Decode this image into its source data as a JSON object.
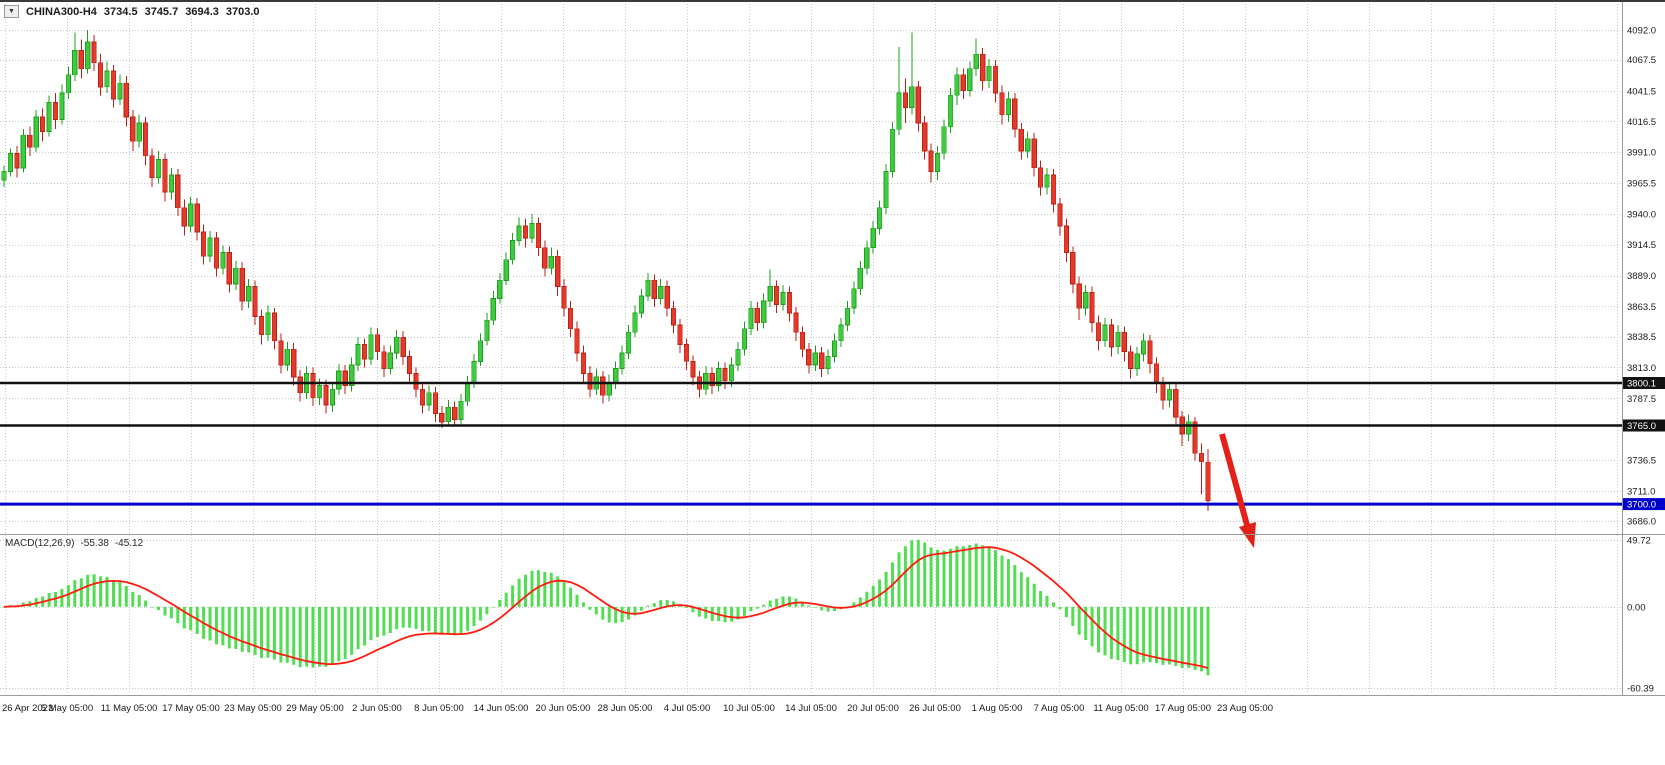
{
  "colors": {
    "background": "#ffffff",
    "grid": "#c9c9c9",
    "candle_up": "#3fca3f",
    "candle_down": "#e43a2c",
    "wick_up": "#1d9e1d",
    "wick_down": "#bb2015",
    "macd_histogram": "#52dd52",
    "signal_line": "#ff1c0f",
    "hline_dark": "#111111",
    "hline_blue": "#0000cc",
    "arrow": "#e32119",
    "axis_text": "#1a1a1a"
  },
  "header": {
    "dropdown_icon": "▼",
    "symbol_period": "CHINA300-H4",
    "open": "3734.5",
    "high": "3745.7",
    "low": "3694.3",
    "close": "3703.0"
  },
  "indicator_label": {
    "name": "MACD(12,26,9)",
    "macd": "-55.38",
    "signal": "-45.12"
  },
  "macd_axis": {
    "labels": [
      "49.72",
      "0.00",
      "-60.39"
    ]
  },
  "chart_data": {
    "type": "candlestick",
    "symbol": "CHINA300",
    "timeframe": "H4",
    "title": "CHINA300-H4",
    "last_quote": {
      "open": 3734.5,
      "high": 3745.7,
      "low": 3694.3,
      "close": 3703.0
    },
    "ylim": [
      3686.0,
      4092.0
    ],
    "grid": "dashed",
    "price_axis_ticks": [
      "4092.0",
      "4067.5",
      "4041.5",
      "4016.5",
      "3991.0",
      "3965.5",
      "3940.0",
      "3914.5",
      "3889.0",
      "3863.5",
      "3838.5",
      "3813.0",
      "3787.5",
      "3736.5",
      "3711.0",
      "3686.0"
    ],
    "time_labels": [
      "26 Apr 2023",
      "5 May 05:00",
      "11 May 05:00",
      "17 May 05:00",
      "23 May 05:00",
      "29 May 05:00",
      "2 Jun 05:00",
      "8 Jun 05:00",
      "14 Jun 05:00",
      "20 Jun 05:00",
      "28 Jun 05:00",
      "4 Jul 05:00",
      "10 Jul 05:00",
      "14 Jul 05:00",
      "20 Jul 05:00",
      "26 Jul 05:00",
      "1 Aug 05:00",
      "7 Aug 05:00",
      "11 Aug 05:00",
      "17 Aug 05:00",
      "23 Aug 05:00"
    ],
    "horizontal_lines": [
      {
        "price": 3800.1,
        "label": "3800.1",
        "color": "#111111"
      },
      {
        "price": 3765.0,
        "label": "3765.0",
        "color": "#111111"
      },
      {
        "price": 3700.0,
        "label": "3700.0",
        "color": "#0000cc"
      }
    ],
    "annotation_arrow": {
      "shape": "arrow-down-right",
      "color": "#e32119",
      "meaning": "breakdown below support toward 3700"
    },
    "indicator": {
      "type": "MACD",
      "fast": 12,
      "slow": 26,
      "signal": 9,
      "last_macd": -55.38,
      "last_signal": -45.12,
      "ylim": [
        -60.39,
        49.72
      ],
      "zero_label": "0.00"
    },
    "ohlc": [
      [
        3968,
        3980,
        3962,
        3975
      ],
      [
        3975,
        3994,
        3971,
        3990
      ],
      [
        3990,
        3996,
        3970,
        3978
      ],
      [
        3978,
        4010,
        3974,
        4005
      ],
      [
        4005,
        4012,
        3988,
        3995
      ],
      [
        3995,
        4026,
        3991,
        4020
      ],
      [
        4020,
        4027,
        4000,
        4008
      ],
      [
        4008,
        4038,
        4004,
        4032
      ],
      [
        4032,
        4040,
        4010,
        4018
      ],
      [
        4018,
        4047,
        4014,
        4040
      ],
      [
        4040,
        4062,
        4035,
        4055
      ],
      [
        4055,
        4090,
        4050,
        4075
      ],
      [
        4075,
        4084,
        4052,
        4060
      ],
      [
        4060,
        4092,
        4056,
        4082
      ],
      [
        4082,
        4088,
        4058,
        4065
      ],
      [
        4065,
        4072,
        4038,
        4045
      ],
      [
        4045,
        4066,
        4040,
        4058
      ],
      [
        4058,
        4063,
        4028,
        4035
      ],
      [
        4035,
        4055,
        4030,
        4048
      ],
      [
        4048,
        4054,
        4012,
        4020
      ],
      [
        4020,
        4026,
        3992,
        4000
      ],
      [
        4000,
        4022,
        3995,
        4015
      ],
      [
        4015,
        4020,
        3980,
        3988
      ],
      [
        3988,
        3994,
        3962,
        3970
      ],
      [
        3970,
        3992,
        3965,
        3985
      ],
      [
        3985,
        3990,
        3950,
        3958
      ],
      [
        3958,
        3978,
        3952,
        3972
      ],
      [
        3972,
        3977,
        3938,
        3945
      ],
      [
        3945,
        3952,
        3922,
        3930
      ],
      [
        3930,
        3954,
        3925,
        3948
      ],
      [
        3948,
        3953,
        3918,
        3925
      ],
      [
        3925,
        3931,
        3898,
        3905
      ],
      [
        3905,
        3926,
        3900,
        3920
      ],
      [
        3920,
        3925,
        3888,
        3895
      ],
      [
        3895,
        3914,
        3890,
        3908
      ],
      [
        3908,
        3913,
        3875,
        3882
      ],
      [
        3882,
        3901,
        3877,
        3895
      ],
      [
        3895,
        3900,
        3860,
        3868
      ],
      [
        3868,
        3886,
        3862,
        3880
      ],
      [
        3880,
        3885,
        3848,
        3855
      ],
      [
        3855,
        3861,
        3832,
        3840
      ],
      [
        3840,
        3864,
        3835,
        3858
      ],
      [
        3858,
        3862,
        3828,
        3835
      ],
      [
        3835,
        3841,
        3808,
        3815
      ],
      [
        3815,
        3834,
        3810,
        3828
      ],
      [
        3828,
        3833,
        3798,
        3805
      ],
      [
        3805,
        3811,
        3785,
        3792
      ],
      [
        3792,
        3814,
        3787,
        3808
      ],
      [
        3808,
        3813,
        3781,
        3788
      ],
      [
        3788,
        3804,
        3782,
        3798
      ],
      [
        3798,
        3803,
        3775,
        3782
      ],
      [
        3782,
        3801,
        3776,
        3795
      ],
      [
        3795,
        3816,
        3790,
        3810
      ],
      [
        3810,
        3815,
        3791,
        3798
      ],
      [
        3798,
        3821,
        3793,
        3815
      ],
      [
        3815,
        3838,
        3810,
        3832
      ],
      [
        3832,
        3837,
        3813,
        3820
      ],
      [
        3820,
        3846,
        3815,
        3840
      ],
      [
        3840,
        3845,
        3819,
        3826
      ],
      [
        3826,
        3831,
        3805,
        3812
      ],
      [
        3812,
        3831,
        3807,
        3825
      ],
      [
        3825,
        3844,
        3820,
        3838
      ],
      [
        3838,
        3843,
        3815,
        3822
      ],
      [
        3822,
        3827,
        3800,
        3808
      ],
      [
        3808,
        3813,
        3788,
        3795
      ],
      [
        3795,
        3800,
        3775,
        3782
      ],
      [
        3782,
        3798,
        3777,
        3792
      ],
      [
        3792,
        3797,
        3768,
        3775
      ],
      [
        3775,
        3781,
        3763,
        3768
      ],
      [
        3768,
        3786,
        3764,
        3780
      ],
      [
        3780,
        3785,
        3764,
        3770
      ],
      [
        3770,
        3791,
        3766,
        3785
      ],
      [
        3785,
        3806,
        3781,
        3800
      ],
      [
        3800,
        3824,
        3796,
        3818
      ],
      [
        3818,
        3841,
        3814,
        3835
      ],
      [
        3835,
        3858,
        3831,
        3852
      ],
      [
        3852,
        3876,
        3848,
        3870
      ],
      [
        3870,
        3891,
        3866,
        3885
      ],
      [
        3885,
        3908,
        3881,
        3902
      ],
      [
        3902,
        3924,
        3898,
        3918
      ],
      [
        3918,
        3937,
        3914,
        3930
      ],
      [
        3930,
        3936,
        3912,
        3920
      ],
      [
        3920,
        3940,
        3916,
        3932
      ],
      [
        3932,
        3937,
        3905,
        3912
      ],
      [
        3912,
        3918,
        3888,
        3895
      ],
      [
        3895,
        3912,
        3890,
        3905
      ],
      [
        3905,
        3910,
        3872,
        3880
      ],
      [
        3880,
        3886,
        3855,
        3862
      ],
      [
        3862,
        3868,
        3838,
        3845
      ],
      [
        3845,
        3851,
        3818,
        3825
      ],
      [
        3825,
        3831,
        3801,
        3808
      ],
      [
        3808,
        3814,
        3788,
        3795
      ],
      [
        3795,
        3812,
        3790,
        3805
      ],
      [
        3805,
        3810,
        3783,
        3790
      ],
      [
        3790,
        3807,
        3785,
        3800
      ],
      [
        3800,
        3818,
        3795,
        3812
      ],
      [
        3812,
        3831,
        3807,
        3825
      ],
      [
        3825,
        3848,
        3820,
        3842
      ],
      [
        3842,
        3864,
        3838,
        3858
      ],
      [
        3858,
        3878,
        3854,
        3872
      ],
      [
        3872,
        3891,
        3868,
        3885
      ],
      [
        3885,
        3890,
        3863,
        3870
      ],
      [
        3870,
        3886,
        3865,
        3880
      ],
      [
        3880,
        3885,
        3855,
        3862
      ],
      [
        3862,
        3868,
        3841,
        3848
      ],
      [
        3848,
        3853,
        3825,
        3832
      ],
      [
        3832,
        3837,
        3811,
        3818
      ],
      [
        3818,
        3823,
        3798,
        3805
      ],
      [
        3805,
        3810,
        3788,
        3795
      ],
      [
        3795,
        3814,
        3790,
        3808
      ],
      [
        3808,
        3813,
        3791,
        3798
      ],
      [
        3798,
        3818,
        3793,
        3812
      ],
      [
        3812,
        3817,
        3795,
        3802
      ],
      [
        3802,
        3821,
        3797,
        3815
      ],
      [
        3815,
        3834,
        3810,
        3828
      ],
      [
        3828,
        3851,
        3823,
        3845
      ],
      [
        3845,
        3868,
        3840,
        3862
      ],
      [
        3862,
        3867,
        3843,
        3850
      ],
      [
        3850,
        3874,
        3845,
        3868
      ],
      [
        3868,
        3894,
        3863,
        3880
      ],
      [
        3880,
        3885,
        3858,
        3865
      ],
      [
        3865,
        3881,
        3860,
        3875
      ],
      [
        3875,
        3880,
        3851,
        3858
      ],
      [
        3858,
        3863,
        3835,
        3842
      ],
      [
        3842,
        3847,
        3821,
        3828
      ],
      [
        3828,
        3833,
        3808,
        3815
      ],
      [
        3815,
        3831,
        3810,
        3825
      ],
      [
        3825,
        3830,
        3805,
        3812
      ],
      [
        3812,
        3828,
        3807,
        3822
      ],
      [
        3822,
        3841,
        3817,
        3835
      ],
      [
        3835,
        3854,
        3830,
        3848
      ],
      [
        3848,
        3868,
        3843,
        3862
      ],
      [
        3862,
        3884,
        3857,
        3878
      ],
      [
        3878,
        3901,
        3873,
        3895
      ],
      [
        3895,
        3918,
        3890,
        3912
      ],
      [
        3912,
        3934,
        3907,
        3928
      ],
      [
        3928,
        3951,
        3923,
        3945
      ],
      [
        3945,
        3981,
        3940,
        3975
      ],
      [
        3975,
        4016,
        3970,
        4010
      ],
      [
        4010,
        4078,
        4005,
        4040
      ],
      [
        4040,
        4052,
        4015,
        4028
      ],
      [
        4028,
        4090,
        4022,
        4045
      ],
      [
        4045,
        4050,
        4008,
        4015
      ],
      [
        4015,
        4021,
        3985,
        3992
      ],
      [
        3992,
        3998,
        3966,
        3975
      ],
      [
        3975,
        3996,
        3968,
        3990
      ],
      [
        3990,
        4018,
        3985,
        4012
      ],
      [
        4012,
        4044,
        4007,
        4038
      ],
      [
        4038,
        4061,
        4030,
        4055
      ],
      [
        4055,
        4060,
        4035,
        4042
      ],
      [
        4042,
        4066,
        4037,
        4060
      ],
      [
        4060,
        4085,
        4054,
        4072
      ],
      [
        4072,
        4077,
        4042,
        4050
      ],
      [
        4050,
        4068,
        4044,
        4062
      ],
      [
        4062,
        4067,
        4032,
        4040
      ],
      [
        4040,
        4046,
        4014,
        4022
      ],
      [
        4022,
        4041,
        4016,
        4035
      ],
      [
        4035,
        4040,
        4003,
        4010
      ],
      [
        4010,
        4015,
        3985,
        3992
      ],
      [
        3992,
        4008,
        3986,
        4002
      ],
      [
        4002,
        4007,
        3971,
        3978
      ],
      [
        3978,
        3984,
        3955,
        3962
      ],
      [
        3962,
        3978,
        3956,
        3972
      ],
      [
        3972,
        3977,
        3941,
        3948
      ],
      [
        3948,
        3953,
        3922,
        3930
      ],
      [
        3930,
        3936,
        3900,
        3908
      ],
      [
        3908,
        3913,
        3874,
        3882
      ],
      [
        3882,
        3888,
        3852,
        3862
      ],
      [
        3862,
        3881,
        3856,
        3875
      ],
      [
        3875,
        3880,
        3842,
        3850
      ],
      [
        3850,
        3856,
        3827,
        3835
      ],
      [
        3835,
        3854,
        3830,
        3848
      ],
      [
        3848,
        3853,
        3822,
        3830
      ],
      [
        3830,
        3848,
        3824,
        3842
      ],
      [
        3842,
        3847,
        3818,
        3826
      ],
      [
        3826,
        3831,
        3804,
        3812
      ],
      [
        3812,
        3830,
        3806,
        3824
      ],
      [
        3824,
        3841,
        3818,
        3835
      ],
      [
        3835,
        3840,
        3808,
        3816
      ],
      [
        3816,
        3821,
        3792,
        3800
      ],
      [
        3800,
        3805,
        3778,
        3786
      ],
      [
        3786,
        3801,
        3780,
        3795
      ],
      [
        3795,
        3800,
        3764,
        3772
      ],
      [
        3772,
        3777,
        3748,
        3758
      ],
      [
        3758,
        3774,
        3752,
        3768
      ],
      [
        3768,
        3772,
        3736,
        3742
      ],
      [
        3742,
        3750,
        3708,
        3735
      ],
      [
        3734.5,
        3745.7,
        3694.3,
        3703.0
      ]
    ]
  }
}
